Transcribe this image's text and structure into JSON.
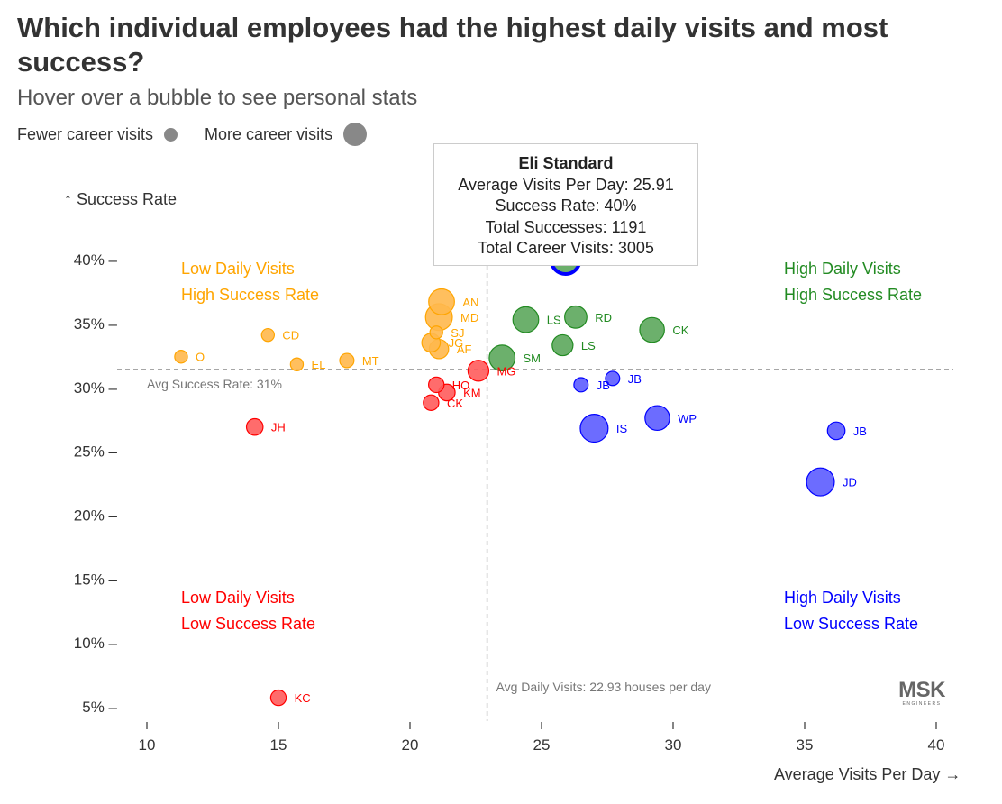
{
  "title": "Which individual employees had the highest daily visits and most success?",
  "subtitle": "Hover over a bubble to see personal stats",
  "legend": {
    "fewer": "Fewer career visits",
    "more": "More career visits"
  },
  "tooltip": {
    "name": "Eli Standard",
    "avg_visits": "Average Visits Per Day: 25.91",
    "success_rate": "Success Rate: 40%",
    "total_successes": "Total Successes: 1191",
    "total_visits": "Total Career Visits: 3005"
  },
  "logo": {
    "big": "MSK",
    "small": "ENGINEERS"
  },
  "colors": {
    "orange": "#FFA500",
    "green": "#228B22",
    "red": "#FF0000",
    "blue": "#0000FF",
    "ref": "#888888"
  },
  "chart_data": {
    "type": "scatter",
    "xlabel": "Average Visits Per Day →",
    "ylabel": "↑ Success Rate",
    "xlim": [
      9,
      41
    ],
    "ylim": [
      3.5,
      41.5
    ],
    "xticks": [
      10,
      15,
      20,
      25,
      30,
      35,
      40
    ],
    "yticks": [
      5,
      10,
      15,
      20,
      25,
      30,
      35,
      40
    ],
    "ytick_labels": [
      "5% –",
      "10% –",
      "15% –",
      "20% –",
      "25% –",
      "30% –",
      "35% –",
      "40% –"
    ],
    "avg_x": 22.93,
    "avg_y": 31.4,
    "avg_x_label": "Avg Daily Visits: 22.93 houses per day",
    "avg_y_label": "Avg Success Rate: 31%",
    "quadrants": {
      "top_left": [
        "Low Daily Visits",
        "High Success Rate"
      ],
      "top_right": [
        "High Daily Visits",
        "High Success Rate"
      ],
      "bottom_left": [
        "Low Daily Visits",
        "Low Success Rate"
      ],
      "bottom_right": [
        "High Daily Visits",
        "Low Success Rate"
      ]
    },
    "points": [
      {
        "label": "O",
        "x": 11.3,
        "y": 32.4,
        "size": 1,
        "group": "orange"
      },
      {
        "label": "CD",
        "x": 14.6,
        "y": 34.1,
        "size": 1,
        "group": "orange"
      },
      {
        "label": "EL",
        "x": 15.7,
        "y": 31.8,
        "size": 1,
        "group": "orange"
      },
      {
        "label": "MT",
        "x": 17.6,
        "y": 32.1,
        "size": 1.5,
        "group": "orange"
      },
      {
        "label": "AN",
        "x": 21.2,
        "y": 36.7,
        "size": 9,
        "group": "orange"
      },
      {
        "label": "MD",
        "x": 21.1,
        "y": 35.5,
        "size": 10,
        "group": "orange"
      },
      {
        "label": "SJ",
        "x": 21.0,
        "y": 34.3,
        "size": 1,
        "group": "orange"
      },
      {
        "label": "JG",
        "x": 20.8,
        "y": 33.5,
        "size": 3.5,
        "group": "orange"
      },
      {
        "label": "AF",
        "x": 21.1,
        "y": 33.0,
        "size": 4,
        "group": "orange"
      },
      {
        "label": "LS",
        "x": 24.4,
        "y": 35.3,
        "size": 9,
        "group": "green"
      },
      {
        "label": "RD",
        "x": 26.3,
        "y": 35.5,
        "size": 6,
        "group": "green"
      },
      {
        "label": "LS",
        "x": 25.8,
        "y": 33.3,
        "size": 5,
        "group": "green"
      },
      {
        "label": "CK",
        "x": 29.2,
        "y": 34.5,
        "size": 8,
        "group": "green"
      },
      {
        "label": "SM",
        "x": 23.5,
        "y": 32.3,
        "size": 9,
        "group": "green"
      },
      {
        "label": "ES",
        "x": 25.91,
        "y": 40.0,
        "size": 12,
        "group": "green",
        "highlighted": true
      },
      {
        "label": "MG",
        "x": 22.6,
        "y": 31.3,
        "size": 5,
        "group": "red"
      },
      {
        "label": "HO",
        "x": 21.0,
        "y": 30.2,
        "size": 2,
        "group": "red"
      },
      {
        "label": "KM",
        "x": 21.4,
        "y": 29.6,
        "size": 2.5,
        "group": "red"
      },
      {
        "label": "CK",
        "x": 20.8,
        "y": 28.8,
        "size": 2,
        "group": "red"
      },
      {
        "label": "JH",
        "x": 14.1,
        "y": 26.9,
        "size": 2.5,
        "group": "red"
      },
      {
        "label": "KC",
        "x": 15.0,
        "y": 5.7,
        "size": 2,
        "group": "red"
      },
      {
        "label": "JB",
        "x": 27.7,
        "y": 30.7,
        "size": 1.5,
        "group": "blue"
      },
      {
        "label": "JB",
        "x": 26.5,
        "y": 30.2,
        "size": 1.5,
        "group": "blue"
      },
      {
        "label": "WP",
        "x": 29.4,
        "y": 27.6,
        "size": 8,
        "group": "blue"
      },
      {
        "label": "IS",
        "x": 27.0,
        "y": 26.8,
        "size": 11,
        "group": "blue"
      },
      {
        "label": "JB",
        "x": 36.2,
        "y": 26.6,
        "size": 3,
        "group": "blue"
      },
      {
        "label": "JD",
        "x": 35.6,
        "y": 22.6,
        "size": 11,
        "group": "blue"
      }
    ]
  }
}
